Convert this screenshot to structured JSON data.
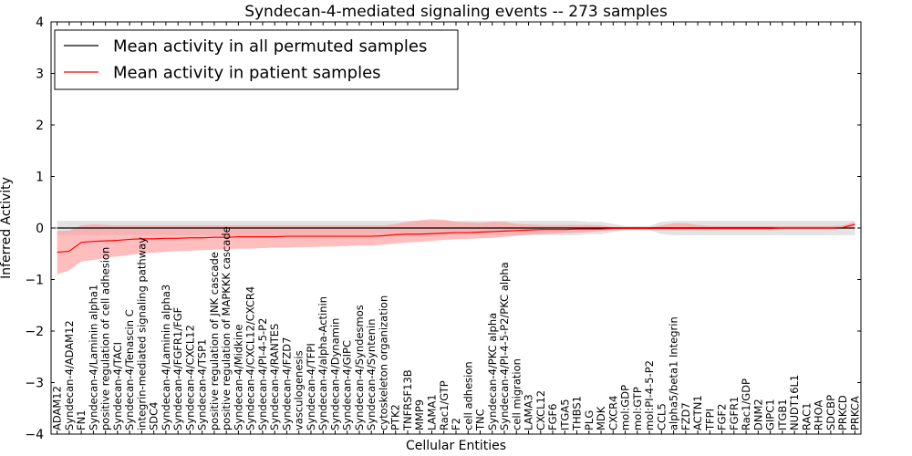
{
  "chart_data": {
    "type": "line",
    "title": "Syndecan-4-mediated signaling events -- 273 samples",
    "xlabel": "Cellular Entities",
    "ylabel": "Inferred Activity",
    "ylim": [
      -4,
      4
    ],
    "yticks": [
      4,
      3,
      2,
      1,
      0,
      -1,
      -2,
      -3,
      -4
    ],
    "ytick_labels": [
      "4",
      "3",
      "2",
      "1",
      "0",
      "−1",
      "−2",
      "−3",
      "−4"
    ],
    "legend_position": "top-left",
    "categories": [
      "ADAM12",
      "Syndecan-4/ADAM12",
      "FN1",
      "Syndecan-4/Laminin alpha1",
      "positive regulation of cell adhesion",
      "Syndecan-4/TACI",
      "Syndecan-4/Tenascin C",
      "integrin-mediated signaling pathway",
      "SDC4",
      "Syndecan-4/Laminin alpha3",
      "Syndecan-4/FGFR1/FGF",
      "Syndecan-4/CXCL12",
      "Syndecan-4/TSP1",
      "positive regulation of JNK cascade",
      "positive regulation of MAPKKK cascade",
      "Syndecan-4/Midkine",
      "Syndecan-4/CXCL12/CXCR4",
      "Syndecan-4/PI-4-5-P2",
      "Syndecan-4/RANTES",
      "Syndecan-4/FZD7",
      "vasculogenesis",
      "Syndecan-4/TFPI",
      "Syndecan-4/alpha-Actinin",
      "Syndecan-4/Dynamin",
      "Syndecan-4/GIPC",
      "Syndecan-4/Syndesmos",
      "Syndecan-4/Syntenin",
      "cytoskeleton organization",
      "PTK2",
      "TNFRSF13B",
      "MMP9",
      "LAMA1",
      "Rac1/GTP",
      "F2",
      "cell adhesion",
      "TNC",
      "Syndecan-4/PKC alpha",
      "Syndecan-4/PI-4-5-P2/PKC alpha",
      "cell migration",
      "LAMA3",
      "CXCL12",
      "FGF6",
      "ITGA5",
      "THBS1",
      "PLG",
      "MDK",
      "CXCR4",
      "mol:GDP",
      "mol:GTP",
      "mol:PI-4-5-P2",
      "CCL5",
      "alpha5/beta1 Integrin",
      "FZD7",
      "ACTN1",
      "TFPI",
      "FGF2",
      "FGFR1",
      "Rac1/GDP",
      "DNM2",
      "GIPC1",
      "ITGB1",
      "NUDT16L1",
      "RAC1",
      "RHOA",
      "SDCBP",
      "PRKCD",
      "PRKCA"
    ],
    "series": [
      {
        "name": "Mean activity in all permuted samples",
        "color": "#000000",
        "values": [
          0,
          0,
          0,
          0,
          0,
          0,
          0,
          0,
          0,
          0,
          0,
          0,
          0,
          0,
          0,
          0,
          0,
          0,
          0,
          0,
          0,
          0,
          0,
          0,
          0,
          0,
          0,
          0,
          0,
          0,
          0,
          0,
          0,
          0,
          0,
          0,
          0,
          0,
          0,
          0,
          0,
          0,
          0,
          0,
          0,
          0,
          0,
          0,
          0,
          0,
          0,
          0,
          0,
          0,
          0,
          0,
          0,
          0,
          0,
          0,
          0,
          0,
          0,
          0,
          0,
          0,
          0
        ],
        "band_lower": [
          -0.14,
          -0.14,
          -0.14,
          -0.14,
          -0.14,
          -0.14,
          -0.14,
          -0.14,
          -0.14,
          -0.14,
          -0.14,
          -0.14,
          -0.14,
          -0.14,
          -0.14,
          -0.14,
          -0.14,
          -0.14,
          -0.14,
          -0.14,
          -0.14,
          -0.14,
          -0.14,
          -0.14,
          -0.14,
          -0.14,
          -0.14,
          -0.14,
          -0.14,
          -0.14,
          -0.14,
          -0.14,
          -0.14,
          -0.14,
          -0.14,
          -0.14,
          -0.14,
          -0.14,
          -0.14,
          -0.14,
          -0.14,
          -0.14,
          -0.14,
          -0.14,
          -0.12,
          -0.12,
          -0.08,
          -0.04,
          -0.04,
          -0.04,
          -0.12,
          -0.14,
          -0.14,
          -0.14,
          -0.14,
          -0.14,
          -0.14,
          -0.14,
          -0.14,
          -0.14,
          -0.14,
          -0.14,
          -0.14,
          -0.14,
          -0.14,
          -0.14,
          -0.14
        ],
        "band_upper": [
          0.14,
          0.14,
          0.14,
          0.14,
          0.14,
          0.14,
          0.14,
          0.14,
          0.14,
          0.14,
          0.14,
          0.14,
          0.14,
          0.14,
          0.14,
          0.14,
          0.14,
          0.14,
          0.14,
          0.14,
          0.14,
          0.14,
          0.14,
          0.14,
          0.14,
          0.14,
          0.14,
          0.14,
          0.14,
          0.14,
          0.14,
          0.14,
          0.14,
          0.14,
          0.14,
          0.14,
          0.14,
          0.14,
          0.14,
          0.14,
          0.14,
          0.14,
          0.14,
          0.14,
          0.12,
          0.12,
          0.08,
          0.04,
          0.04,
          0.04,
          0.12,
          0.14,
          0.14,
          0.14,
          0.14,
          0.14,
          0.14,
          0.14,
          0.14,
          0.14,
          0.14,
          0.14,
          0.14,
          0.14,
          0.14,
          0.14,
          0.14
        ]
      },
      {
        "name": "Mean activity in patient samples",
        "color": "#ff0000",
        "values": [
          -0.47,
          -0.45,
          -0.28,
          -0.26,
          -0.25,
          -0.24,
          -0.22,
          -0.21,
          -0.21,
          -0.2,
          -0.2,
          -0.19,
          -0.19,
          -0.18,
          -0.18,
          -0.17,
          -0.17,
          -0.17,
          -0.17,
          -0.16,
          -0.16,
          -0.16,
          -0.16,
          -0.16,
          -0.16,
          -0.16,
          -0.16,
          -0.15,
          -0.13,
          -0.12,
          -0.12,
          -0.11,
          -0.1,
          -0.09,
          -0.09,
          -0.08,
          -0.07,
          -0.06,
          -0.05,
          -0.04,
          -0.03,
          -0.03,
          -0.03,
          -0.02,
          -0.02,
          -0.02,
          -0.01,
          -0.01,
          -0.01,
          -0.01,
          -0.01,
          -0.01,
          -0.01,
          -0.01,
          -0.01,
          -0.01,
          -0.01,
          -0.01,
          -0.01,
          -0.01,
          0,
          0,
          0,
          0,
          0,
          0.01,
          0.07
        ],
        "band_lower": [
          -0.9,
          -0.82,
          -0.65,
          -0.62,
          -0.58,
          -0.55,
          -0.52,
          -0.5,
          -0.48,
          -0.46,
          -0.45,
          -0.44,
          -0.43,
          -0.42,
          -0.41,
          -0.4,
          -0.4,
          -0.39,
          -0.38,
          -0.38,
          -0.37,
          -0.37,
          -0.36,
          -0.36,
          -0.35,
          -0.34,
          -0.34,
          -0.32,
          -0.3,
          -0.28,
          -0.27,
          -0.25,
          -0.23,
          -0.22,
          -0.21,
          -0.2,
          -0.19,
          -0.17,
          -0.15,
          -0.13,
          -0.12,
          -0.11,
          -0.1,
          -0.09,
          -0.08,
          -0.06,
          -0.04,
          -0.02,
          -0.02,
          -0.02,
          -0.02,
          -0.02,
          -0.02,
          -0.02,
          -0.02,
          -0.02,
          -0.02,
          -0.02,
          -0.02,
          -0.02,
          -0.02,
          -0.02,
          -0.02,
          -0.02,
          -0.02,
          -0.02,
          0.02
        ],
        "band_upper": [
          -0.06,
          -0.05,
          0.05,
          0.07,
          0.06,
          0.05,
          0.05,
          0.05,
          0.05,
          0.05,
          0.05,
          0.05,
          0.05,
          0.05,
          0.05,
          0.05,
          0.05,
          0.05,
          0.05,
          0.05,
          0.05,
          0.05,
          0.05,
          0.05,
          0.05,
          0.05,
          0.05,
          0.05,
          0.08,
          0.12,
          0.15,
          0.17,
          0.16,
          0.12,
          0.11,
          0.1,
          0.12,
          0.12,
          0.08,
          0.07,
          0.06,
          0.06,
          0.06,
          0.06,
          0.06,
          0.05,
          0.02,
          0.01,
          0.01,
          0.01,
          0.05,
          0.09,
          0.09,
          0.06,
          0.04,
          0.04,
          0.04,
          0.04,
          0.04,
          0.04,
          0.04,
          0.04,
          0.04,
          0.04,
          0.04,
          0.05,
          0.12
        ]
      }
    ],
    "colors": {
      "permuted_band": "#d9d9d9",
      "patient_band": "#ff9999"
    }
  }
}
